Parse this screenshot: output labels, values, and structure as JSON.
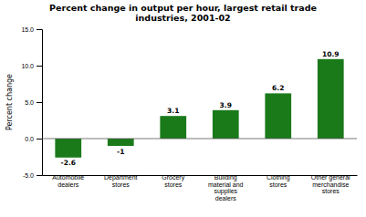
{
  "chart_data": {
    "type": "bar",
    "title": "Percent change in output per hour, largest retail trade\nindustries, 2001-02",
    "categories": [
      "Automobile\ndealers",
      "Department\nstores",
      "Grocery\nstores",
      "Building\nmaterial and\nsupplies\ndealers",
      "Clothing\nstores",
      "Other general\nmerchandise\nstores"
    ],
    "values": [
      -2.6,
      -1.0,
      3.1,
      3.9,
      6.2,
      10.9
    ],
    "color": "#1a7a1a",
    "ylabel": "Percent change",
    "ylim": [
      -5.0,
      15.0
    ],
    "yticks": [
      {
        "value": -5.0,
        "label": "-5.0"
      },
      {
        "value": 0.0,
        "label": "0.0"
      },
      {
        "value": 5.0,
        "label": "5.0"
      },
      {
        "value": 10.0,
        "label": "10.0"
      },
      {
        "value": 15.0,
        "label": "15.0"
      }
    ],
    "data_labels": true,
    "grid": false
  }
}
